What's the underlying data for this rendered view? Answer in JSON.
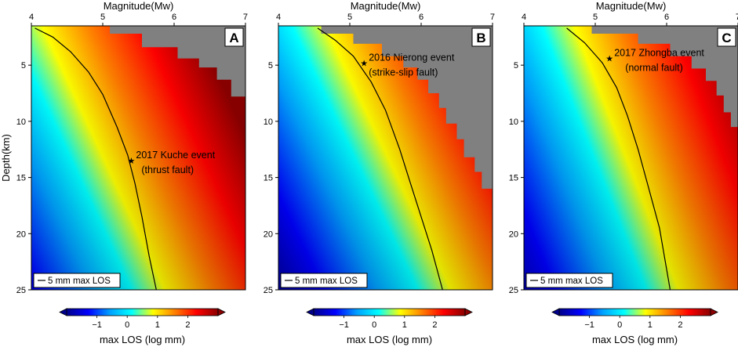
{
  "chart_data": [
    {
      "type": "heatmap",
      "panel_label": "A",
      "x_title": "Magnitude(Mw)",
      "y_title": "Depth(km)",
      "xlim": [
        4,
        7
      ],
      "ylim": [
        1.5,
        25
      ],
      "x_ticks": [
        "4",
        "5",
        "6",
        "7"
      ],
      "y_ticks": [
        "5",
        "10",
        "15",
        "20",
        "25"
      ],
      "color_field": "max LOS = log10(mm), increasing with magnitude, decreasing with depth",
      "contour": {
        "label": "5 mm max LOS",
        "points": [
          [
            4.05,
            1.7
          ],
          [
            4.3,
            2.5
          ],
          [
            4.55,
            3.8
          ],
          [
            4.8,
            5.6
          ],
          [
            5.0,
            7.6
          ],
          [
            5.2,
            10.5
          ],
          [
            5.35,
            13.0
          ],
          [
            5.45,
            15.5
          ],
          [
            5.55,
            18.5
          ],
          [
            5.65,
            22.0
          ],
          [
            5.75,
            25.0
          ]
        ]
      },
      "saturation_region": {
        "fill": "#808080",
        "boundary": [
          [
            5.1,
            1.7
          ],
          [
            5.1,
            2.2
          ],
          [
            5.55,
            2.2
          ],
          [
            5.55,
            3.4
          ],
          [
            6.05,
            3.4
          ],
          [
            6.05,
            4.4
          ],
          [
            6.35,
            4.4
          ],
          [
            6.35,
            5.2
          ],
          [
            6.6,
            5.2
          ],
          [
            6.6,
            6.3
          ],
          [
            6.8,
            6.3
          ],
          [
            6.8,
            7.8
          ],
          [
            7.0,
            7.8
          ]
        ]
      },
      "event": {
        "magnitude": 5.4,
        "depth": 13.5,
        "label_line1": "2017 Kuche event",
        "label_line2": "(thrust fault)"
      },
      "legend": "5 mm max LOS"
    },
    {
      "type": "heatmap",
      "panel_label": "B",
      "x_title": "Magnitude(Mw)",
      "y_title": "",
      "xlim": [
        4,
        7
      ],
      "ylim": [
        1.5,
        25
      ],
      "x_ticks": [
        "4",
        "5",
        "6",
        "7"
      ],
      "y_ticks": [
        "5",
        "10",
        "15",
        "20",
        "25"
      ],
      "color_field": "max LOS = log10(mm), increasing with magnitude, decreasing with depth",
      "contour": {
        "label": "5 mm max LOS",
        "points": [
          [
            4.55,
            1.7
          ],
          [
            4.8,
            2.8
          ],
          [
            5.05,
            4.2
          ],
          [
            5.3,
            6.5
          ],
          [
            5.5,
            9.0
          ],
          [
            5.7,
            12.5
          ],
          [
            5.85,
            15.5
          ],
          [
            6.0,
            18.5
          ],
          [
            6.15,
            21.5
          ],
          [
            6.3,
            25.0
          ]
        ]
      },
      "saturation_region": {
        "fill": "#808080",
        "boundary": [
          [
            4.6,
            1.7
          ],
          [
            4.6,
            2.2
          ],
          [
            5.05,
            2.2
          ],
          [
            5.05,
            3.1
          ],
          [
            5.45,
            3.1
          ],
          [
            5.45,
            4.2
          ],
          [
            5.75,
            4.2
          ],
          [
            5.75,
            5.2
          ],
          [
            5.95,
            5.2
          ],
          [
            5.95,
            6.3
          ],
          [
            6.1,
            6.3
          ],
          [
            6.1,
            7.5
          ],
          [
            6.25,
            7.5
          ],
          [
            6.25,
            8.8
          ],
          [
            6.35,
            8.8
          ],
          [
            6.35,
            10.2
          ],
          [
            6.5,
            10.2
          ],
          [
            6.5,
            11.6
          ],
          [
            6.6,
            11.6
          ],
          [
            6.6,
            13.2
          ],
          [
            6.75,
            13.2
          ],
          [
            6.75,
            14.5
          ],
          [
            6.85,
            14.5
          ],
          [
            6.85,
            16.0
          ],
          [
            7.0,
            16.0
          ]
        ]
      },
      "event": {
        "magnitude": 5.2,
        "depth": 4.8,
        "label_line1": "2016 Nierong event",
        "label_line2": "(strike-slip fault)"
      },
      "legend": "5 mm max LOS"
    },
    {
      "type": "heatmap",
      "panel_label": "C",
      "x_title": "Magnitude(Mw)",
      "y_title": "",
      "xlim": [
        4,
        7
      ],
      "ylim": [
        1.5,
        25
      ],
      "x_ticks": [
        "4",
        "5",
        "6",
        "7"
      ],
      "y_ticks": [
        "5",
        "10",
        "15",
        "20",
        "25"
      ],
      "color_field": "max LOS = log10(mm), increasing with magnitude, decreasing with depth",
      "contour": {
        "label": "5 mm max LOS",
        "points": [
          [
            4.6,
            1.7
          ],
          [
            4.85,
            3.0
          ],
          [
            5.1,
            4.8
          ],
          [
            5.3,
            7.0
          ],
          [
            5.45,
            9.5
          ],
          [
            5.6,
            12.5
          ],
          [
            5.75,
            16.0
          ],
          [
            5.9,
            19.5
          ],
          [
            6.05,
            25.0
          ]
        ]
      },
      "saturation_region": {
        "fill": "#808080",
        "boundary": [
          [
            4.95,
            1.7
          ],
          [
            4.95,
            2.2
          ],
          [
            5.6,
            2.2
          ],
          [
            5.6,
            3.1
          ],
          [
            6.05,
            3.1
          ],
          [
            6.05,
            4.2
          ],
          [
            6.35,
            4.2
          ],
          [
            6.35,
            5.3
          ],
          [
            6.55,
            5.3
          ],
          [
            6.55,
            6.4
          ],
          [
            6.7,
            6.4
          ],
          [
            6.7,
            7.7
          ],
          [
            6.8,
            7.7
          ],
          [
            6.8,
            9.2
          ],
          [
            6.9,
            9.2
          ],
          [
            6.9,
            10.5
          ],
          [
            7.0,
            10.5
          ]
        ]
      },
      "event": {
        "magnitude": 5.2,
        "depth": 4.4,
        "label_line1": "2017 Zhongba event",
        "label_line2": "(normal fault)"
      },
      "legend": "5 mm max LOS"
    }
  ],
  "colorbar": {
    "label": "max LOS (log mm)",
    "range": [
      -2,
      3
    ],
    "tick_values": [
      -1,
      0,
      1,
      2
    ],
    "tick_labels": [
      "−1",
      "0",
      "1",
      "2"
    ],
    "colors": [
      "#00008b",
      "#0000ff",
      "#00a0ff",
      "#00ffff",
      "#ffff00",
      "#ff8000",
      "#ff0000",
      "#8b0000"
    ]
  }
}
